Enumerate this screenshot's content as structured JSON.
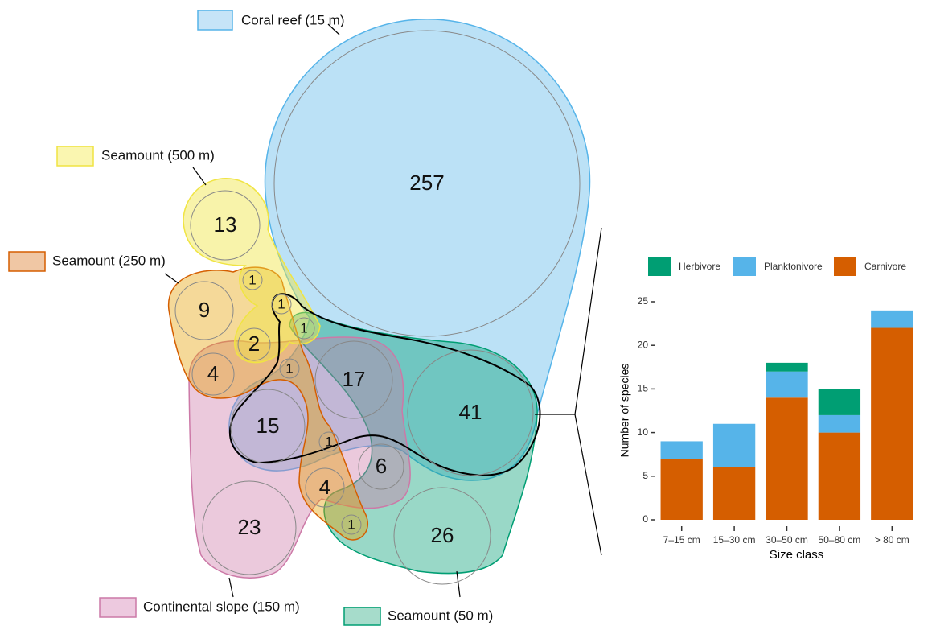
{
  "diagram": {
    "sets": [
      "Coral reef (15 m)",
      "Seamount (500 m)",
      "Seamount (250 m)",
      "Continental slope (150 m)",
      "Seamount (50 m)"
    ],
    "counts": [
      257,
      13,
      1,
      9,
      1,
      1,
      2,
      4,
      1,
      17,
      41,
      15,
      1,
      6,
      4,
      23,
      1,
      26
    ]
  },
  "chart_data": {
    "type": "stacked-bar",
    "categories": [
      "7–15 cm",
      "15–30 cm",
      "30–50 cm",
      "50–80 cm",
      "> 80 cm"
    ],
    "series": [
      {
        "name": "Herbivore",
        "color": "#009E73",
        "values": [
          0,
          0,
          1,
          3,
          0
        ]
      },
      {
        "name": "Planktonivore",
        "color": "#56B4E9",
        "values": [
          2,
          5,
          3,
          2,
          2
        ]
      },
      {
        "name": "Carnivore",
        "color": "#D55E00",
        "values": [
          7,
          6,
          14,
          10,
          22
        ]
      }
    ],
    "x_label": "Size class",
    "y_label": "Number of species",
    "ylim": [
      0,
      25
    ],
    "yticks": [
      0,
      5,
      10,
      15,
      20,
      25
    ]
  }
}
